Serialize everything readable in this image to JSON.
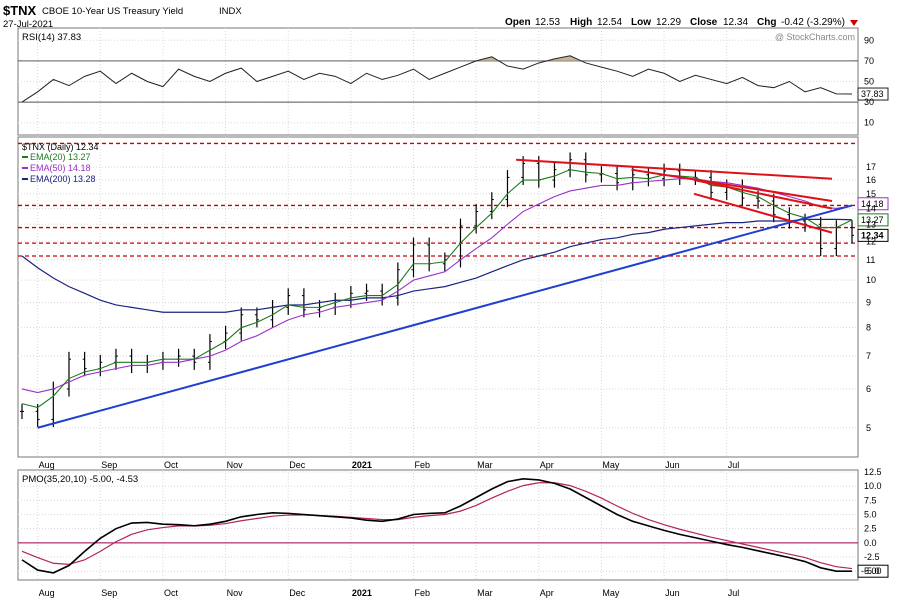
{
  "header": {
    "symbol": "$TNX",
    "name": "CBOE 10-Year US Treasury Yield",
    "exchange": "INDX",
    "date": "27-Jul-2021",
    "open_label": "Open",
    "open": "12.53",
    "high_label": "High",
    "high": "12.54",
    "low_label": "Low",
    "low": "12.29",
    "close_label": "Close",
    "close": "12.34",
    "chg_label": "Chg",
    "chg": "-0.42 (-3.29%)",
    "watermark": "@ StockCharts.com"
  },
  "colors": {
    "price_bars": "#000000",
    "ema20": "#1f7a1f",
    "ema50": "#9b30c8",
    "ema200": "#1a237e",
    "trend_blue": "#1f3fcf",
    "trend_red": "#e0101a",
    "hline_red": "#cc0000",
    "pmo_signal": "#b3245a",
    "rsi_fill": "#c6b59a"
  },
  "chart_data": [
    {
      "type": "line",
      "title": "RSI(14) 37.83",
      "indicator": "RSI(14)",
      "last_value": 37.83,
      "ylim": [
        0,
        100
      ],
      "yticks": [
        10,
        30,
        50,
        70,
        90
      ],
      "guide_lines": [
        30,
        70
      ],
      "grid": true,
      "points_per_month": 4,
      "values": [
        30,
        40,
        52,
        46,
        55,
        60,
        48,
        58,
        50,
        45,
        62,
        55,
        50,
        58,
        63,
        50,
        55,
        60,
        52,
        58,
        55,
        48,
        58,
        52,
        56,
        62,
        52,
        58,
        64,
        70,
        74,
        65,
        62,
        68,
        72,
        75,
        68,
        64,
        60,
        55,
        62,
        58,
        50,
        56,
        52,
        48,
        54,
        46,
        44,
        50,
        40,
        44,
        38,
        37.83
      ]
    },
    {
      "type": "bar",
      "title": "$TNX (Daily) 12.34",
      "legend": [
        {
          "name": "$TNX (Daily)",
          "value": "12.34",
          "color": "#000000"
        },
        {
          "name": "EMA(20)",
          "value": "13.27",
          "color": "#1f7a1f"
        },
        {
          "name": "EMA(50)",
          "value": "14.18",
          "color": "#9b30c8"
        },
        {
          "name": "EMA(200)",
          "value": "13.28",
          "color": "#1a237e"
        }
      ],
      "scale": "log",
      "ylim": [
        4.4,
        19.4
      ],
      "yticks": [
        5,
        6,
        7,
        8,
        9,
        10,
        11,
        12,
        13,
        14,
        15,
        16,
        17
      ],
      "xlabels": [
        "Aug",
        "Sep",
        "Oct",
        "Nov",
        "Dec",
        "2021",
        "Feb",
        "Mar",
        "Apr",
        "May",
        "Jun",
        "Jul"
      ],
      "points_per_month": 4,
      "price_close": [
        5.4,
        5.2,
        6.0,
        6.9,
        6.6,
        6.8,
        7.0,
        6.7,
        6.8,
        6.9,
        7.0,
        6.8,
        7.5,
        7.8,
        8.5,
        8.3,
        8.8,
        9.3,
        8.7,
        8.8,
        9.1,
        9.4,
        9.5,
        9.2,
        10.5,
        11.8,
        10.8,
        11.0,
        12.9,
        13.8,
        14.6,
        16.2,
        17.3,
        16.0,
        16.8,
        17.6,
        16.4,
        16.5,
        15.8,
        16.4,
        16.1,
        16.7,
        16.2,
        16.2,
        15.1,
        15.5,
        14.7,
        14.5,
        13.6,
        13.2,
        13.0,
        11.6,
        12.8,
        12.34
      ],
      "ema20": [
        5.6,
        5.5,
        5.8,
        6.3,
        6.5,
        6.6,
        6.8,
        6.8,
        6.8,
        6.9,
        6.9,
        6.9,
        7.2,
        7.5,
        8.0,
        8.2,
        8.5,
        8.9,
        8.8,
        8.8,
        9.0,
        9.2,
        9.3,
        9.3,
        9.8,
        10.8,
        10.8,
        10.9,
        11.9,
        12.8,
        13.7,
        15.0,
        16.0,
        16.0,
        16.3,
        16.8,
        16.6,
        16.5,
        16.1,
        16.2,
        16.1,
        16.4,
        16.3,
        16.2,
        15.6,
        15.5,
        15.1,
        14.8,
        14.2,
        13.7,
        13.4,
        12.8,
        12.8,
        13.27
      ],
      "ema50": [
        6.0,
        5.9,
        6.0,
        6.2,
        6.4,
        6.5,
        6.6,
        6.7,
        6.7,
        6.8,
        6.8,
        6.9,
        7.0,
        7.2,
        7.5,
        7.7,
        8.0,
        8.3,
        8.5,
        8.6,
        8.8,
        8.9,
        9.0,
        9.1,
        9.5,
        10.0,
        10.2,
        10.4,
        11.0,
        11.6,
        12.2,
        13.0,
        13.8,
        14.3,
        14.8,
        15.2,
        15.4,
        15.6,
        15.6,
        15.8,
        15.9,
        16.0,
        16.1,
        16.1,
        15.9,
        15.8,
        15.6,
        15.4,
        15.1,
        14.8,
        14.5,
        14.1,
        14.0,
        14.18
      ],
      "ema200": [
        11.2,
        10.6,
        10.1,
        9.7,
        9.4,
        9.1,
        8.9,
        8.8,
        8.7,
        8.6,
        8.6,
        8.6,
        8.6,
        8.6,
        8.7,
        8.7,
        8.8,
        8.9,
        8.9,
        9.0,
        9.1,
        9.1,
        9.2,
        9.2,
        9.3,
        9.5,
        9.6,
        9.7,
        9.9,
        10.1,
        10.4,
        10.7,
        11.0,
        11.2,
        11.4,
        11.7,
        11.9,
        12.1,
        12.2,
        12.4,
        12.5,
        12.7,
        12.8,
        12.9,
        13.0,
        13.1,
        13.1,
        13.2,
        13.2,
        13.2,
        13.3,
        13.3,
        13.3,
        13.28
      ],
      "horizontal_levels": [
        11.2,
        11.9,
        12.8,
        14.2,
        19.0
      ],
      "trendlines": [
        {
          "color": "blue",
          "from": {
            "x": "Aug",
            "y": 5.0
          },
          "to": {
            "x": "Jul",
            "y": 14.2
          }
        },
        {
          "color": "red",
          "from": {
            "x": "Mar",
            "y": 17.6
          },
          "to": {
            "x": "Jul",
            "y": 16.1
          }
        },
        {
          "color": "red",
          "from": {
            "x": "May",
            "y": 16.8
          },
          "to": {
            "x": "Jul",
            "y": 14.5
          }
        },
        {
          "color": "red",
          "from": {
            "x": "Jun",
            "y": 16.0
          },
          "to": {
            "x": "Jul",
            "y": 14.0
          }
        },
        {
          "color": "red",
          "from": {
            "x": "Jun",
            "y": 15.0
          },
          "to": {
            "x": "Jul",
            "y": 12.5
          }
        }
      ],
      "tags": [
        {
          "label": "14.18"
        },
        {
          "label": "13.27"
        },
        {
          "label": "12.34"
        }
      ],
      "grid": true
    },
    {
      "type": "line",
      "title": "PMO(35,20,10) -5.00, -4.53",
      "indicator": "PMO(35,20,10)",
      "last_value": -5.0,
      "signal_last": -4.53,
      "ylim": [
        -6.2,
        12.5
      ],
      "yticks": [
        -5.0,
        -2.5,
        0.0,
        2.5,
        5.0,
        7.5,
        10.0,
        12.5
      ],
      "zero_line": true,
      "grid": true,
      "points_per_month": 4,
      "pmo": [
        -3.0,
        -4.8,
        -5.3,
        -4.0,
        -1.5,
        0.8,
        2.5,
        3.5,
        3.6,
        3.3,
        3.2,
        3.0,
        3.3,
        3.8,
        4.6,
        5.0,
        5.3,
        5.2,
        5.0,
        4.8,
        4.6,
        4.4,
        4.0,
        3.8,
        4.2,
        5.0,
        5.2,
        5.3,
        6.5,
        8.0,
        9.5,
        10.8,
        11.3,
        11.1,
        10.5,
        9.5,
        8.0,
        6.5,
        5.0,
        3.8,
        3.0,
        2.2,
        1.5,
        0.9,
        0.3,
        -0.3,
        -0.8,
        -1.4,
        -2.0,
        -2.6,
        -3.3,
        -4.4,
        -5.0,
        -5.0
      ],
      "signal": [
        -1.5,
        -2.6,
        -3.6,
        -3.8,
        -3.0,
        -1.5,
        0.2,
        1.5,
        2.3,
        2.7,
        3.0,
        3.0,
        3.1,
        3.4,
        3.9,
        4.3,
        4.7,
        4.9,
        4.9,
        4.8,
        4.7,
        4.5,
        4.3,
        4.1,
        4.1,
        4.5,
        4.8,
        5.0,
        5.6,
        6.6,
        7.9,
        9.1,
        10.1,
        10.6,
        10.6,
        10.1,
        9.1,
        7.9,
        6.5,
        5.2,
        4.1,
        3.2,
        2.4,
        1.7,
        1.0,
        0.4,
        -0.2,
        -0.8,
        -1.4,
        -2.0,
        -2.6,
        -3.5,
        -4.2,
        -4.53
      ]
    }
  ]
}
